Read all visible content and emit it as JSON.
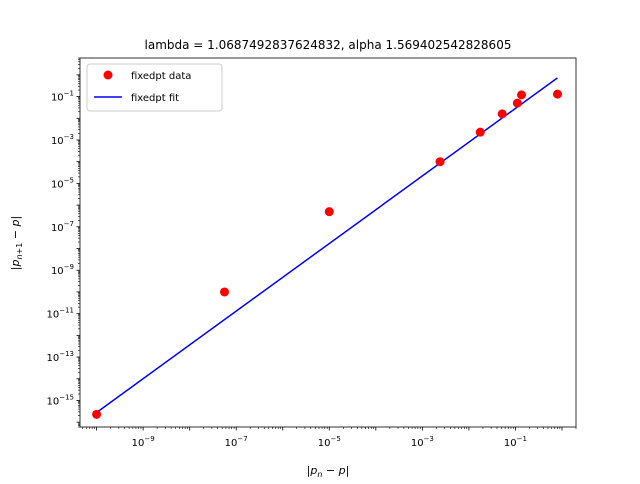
{
  "chart_data": {
    "type": "scatter",
    "title": "lambda = 1.0687492837624832, alpha 1.569402542828605",
    "xlabel": "|p_n − p|",
    "ylabel": "|p_{n+1} − p|",
    "xscale": "log",
    "yscale": "log",
    "xlim": [
      4.4e-11,
      2.0
    ],
    "ylim": [
      6e-17,
      6.0
    ],
    "x_ticks": [
      {
        "exp": -9,
        "value": 1e-09
      },
      {
        "exp": -7,
        "value": 1e-07
      },
      {
        "exp": -5,
        "value": 1e-05
      },
      {
        "exp": -3,
        "value": 0.001
      },
      {
        "exp": -1,
        "value": 0.1
      }
    ],
    "y_ticks": [
      {
        "exp": -15,
        "value": 1e-15
      },
      {
        "exp": -13,
        "value": 1e-13
      },
      {
        "exp": -11,
        "value": 1e-11
      },
      {
        "exp": -9,
        "value": 1e-09
      },
      {
        "exp": -7,
        "value": 1e-07
      },
      {
        "exp": -5,
        "value": 1e-05
      },
      {
        "exp": -3,
        "value": 0.001
      },
      {
        "exp": -1,
        "value": 0.1
      }
    ],
    "grid": false,
    "legend_position": "top-left",
    "series": [
      {
        "name": "fixedpt data",
        "kind": "points",
        "color": "#ff0000",
        "x": [
          1e-10,
          5.6e-08,
          1e-05,
          0.0024,
          0.0175,
          0.052,
          0.11,
          0.135,
          0.8
        ],
        "y": [
          2.3e-16,
          1e-10,
          5e-07,
          0.0001,
          0.0023,
          0.016,
          0.05,
          0.12,
          0.13
        ]
      },
      {
        "name": "fixedpt fit",
        "kind": "line",
        "color": "#0000ff",
        "x": [
          1e-10,
          0.8
        ],
        "y": [
          2.8e-16,
          0.73
        ]
      }
    ],
    "colors": {
      "axes": "#000000",
      "background": "#ffffff"
    }
  }
}
